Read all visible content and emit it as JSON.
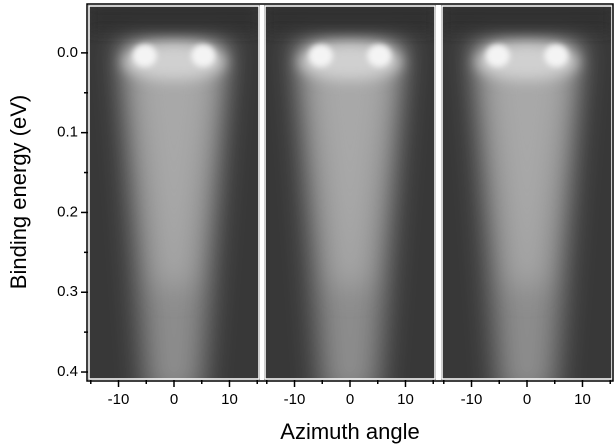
{
  "chart_data": [
    {
      "type": "image",
      "ylabel": "Binding energy (eV)",
      "ylim": [
        0.41,
        -0.06
      ],
      "yticks": [
        {
          "value": 0,
          "label": "0.0"
        },
        0.1,
        0.2,
        0.3,
        0.4
      ],
      "yminorticks": [
        0.05,
        0.15,
        0.25,
        0.35
      ],
      "xlim": [
        -15.5,
        15.5
      ],
      "xticks": [
        -10,
        0,
        10
      ],
      "xminorticks": [
        -15,
        -5,
        5,
        15
      ]
    },
    {
      "type": "image",
      "xlabel": "Azimuth angle",
      "ylim": [
        0.41,
        -0.06
      ],
      "xlim": [
        -15.5,
        15.5
      ],
      "xticks": [
        -10,
        0,
        10
      ],
      "xminorticks": [
        -15,
        -5,
        5,
        15
      ]
    },
    {
      "type": "image",
      "ylim": [
        0.41,
        -0.06
      ],
      "xlim": [
        -15.5,
        15.5
      ],
      "xticks": [
        -10,
        0,
        10
      ],
      "xminorticks": [
        -15,
        -5,
        5,
        15
      ]
    }
  ]
}
